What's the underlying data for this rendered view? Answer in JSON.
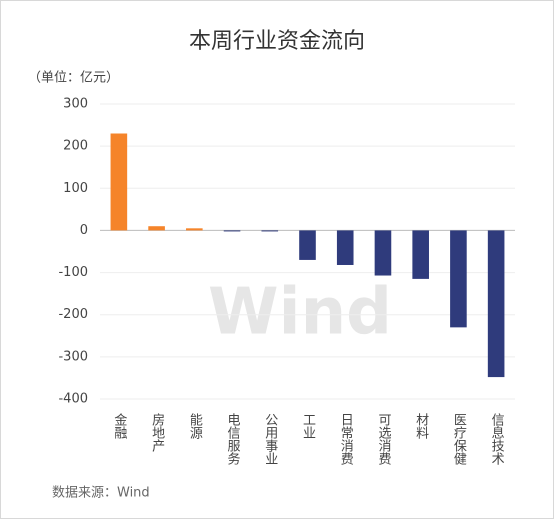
{
  "chart_data": {
    "type": "bar",
    "title": "本周行业资金流向",
    "unit_label": "（单位：亿元）",
    "source": "数据来源：Wind",
    "watermark": "Wind",
    "categories": [
      "金融",
      "房地产",
      "能源",
      "电信服务",
      "公用事业",
      "工业",
      "日常消费",
      "可选消费",
      "材料",
      "医疗保健",
      "信息技术"
    ],
    "values": [
      230,
      10,
      5,
      -2,
      -2,
      -70,
      -82,
      -107,
      -115,
      -230,
      -348
    ],
    "color_positive": "#f5842a",
    "color_negative": "#2f3b7c",
    "ylim": [
      -400,
      300
    ],
    "yticks": [
      300,
      200,
      100,
      0,
      -100,
      -200,
      -300,
      -400
    ],
    "grid": true
  }
}
